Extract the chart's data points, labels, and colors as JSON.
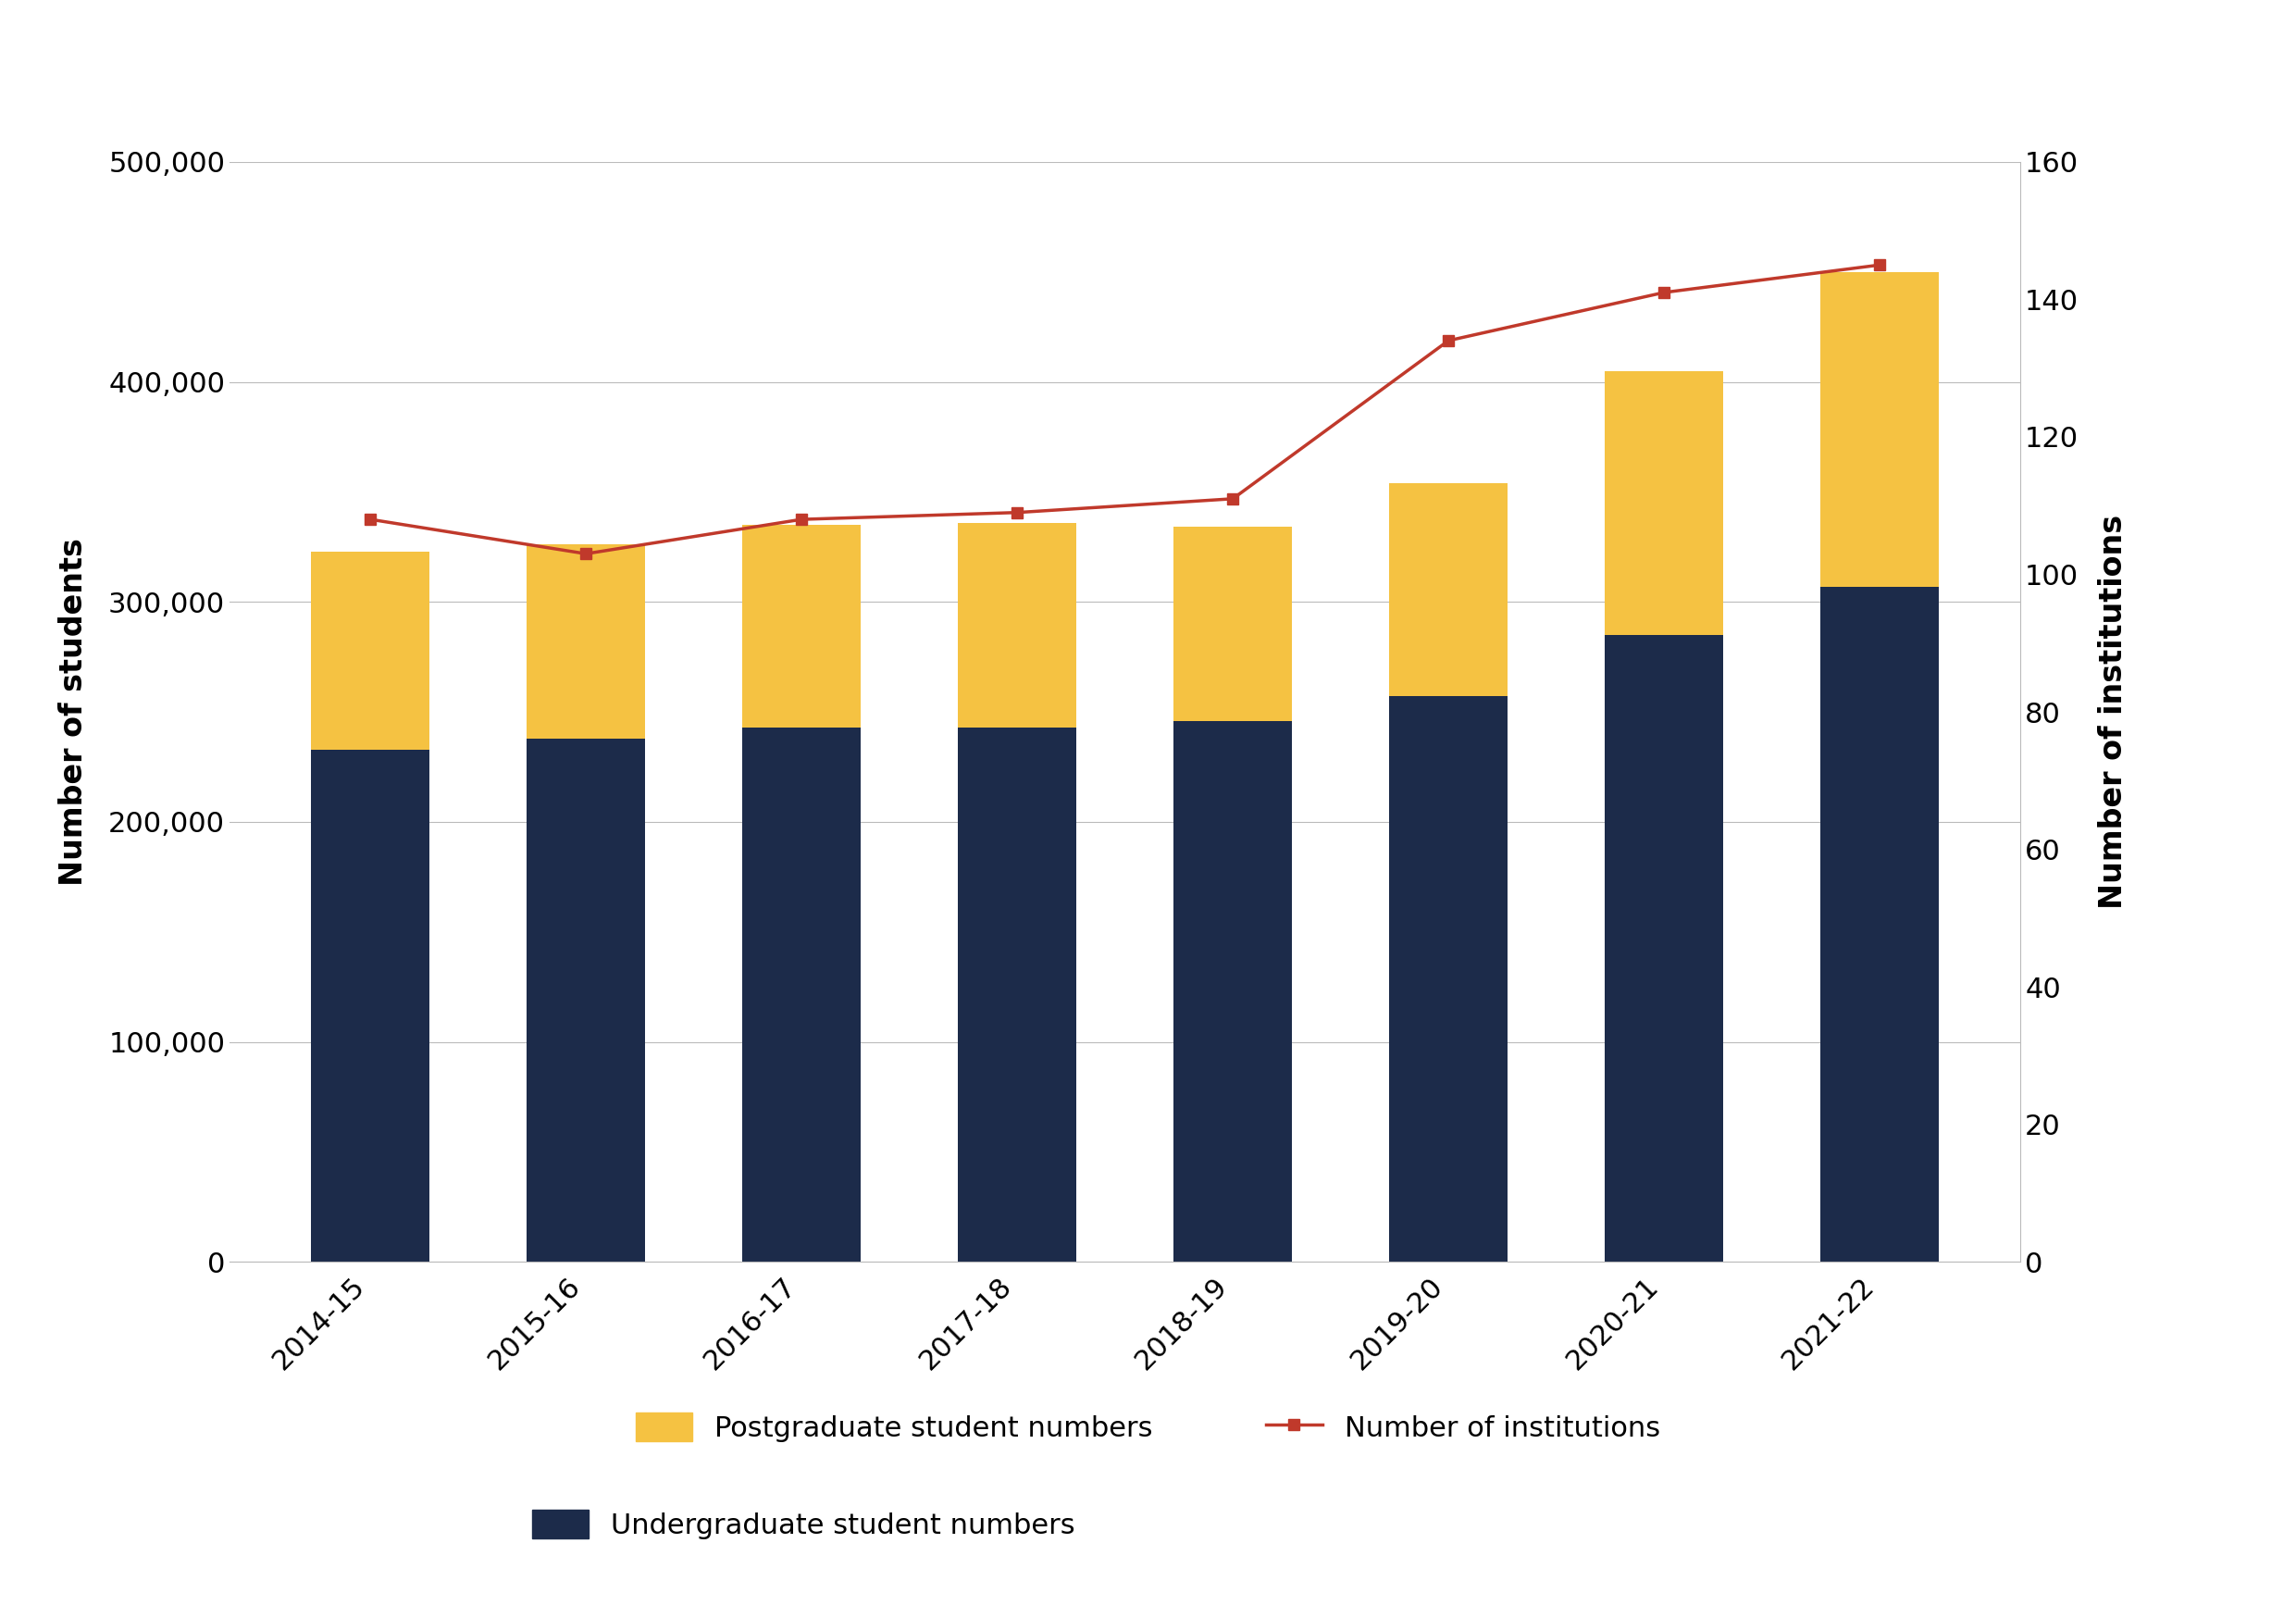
{
  "years": [
    "2014-15",
    "2015-16",
    "2016-17",
    "2017-18",
    "2018-19",
    "2019-20",
    "2020-21",
    "2021-22"
  ],
  "undergraduate": [
    233000,
    238000,
    243000,
    243000,
    246000,
    257000,
    285000,
    307000
  ],
  "postgraduate": [
    90000,
    88000,
    92000,
    93000,
    88000,
    97000,
    120000,
    143000
  ],
  "institutions": [
    108,
    103,
    108,
    109,
    111,
    134,
    141,
    145
  ],
  "bar_color_undergraduate": "#1c2b4a",
  "bar_color_postgraduate": "#f5c242",
  "line_color": "#c0392b",
  "left_ylim": [
    0,
    500000
  ],
  "right_ylim": [
    0,
    160
  ],
  "left_yticks": [
    0,
    100000,
    200000,
    300000,
    400000,
    500000
  ],
  "right_yticks": [
    0,
    20,
    40,
    60,
    80,
    100,
    120,
    140,
    160
  ],
  "ylabel_left": "Number of students",
  "ylabel_right": "Number of institutions",
  "legend_postgrad": "Postgraduate student numbers",
  "legend_undergrad": "Undergraduate student numbers",
  "legend_institutions": "Number of institutions",
  "background_color": "#ffffff",
  "bar_width": 0.55
}
